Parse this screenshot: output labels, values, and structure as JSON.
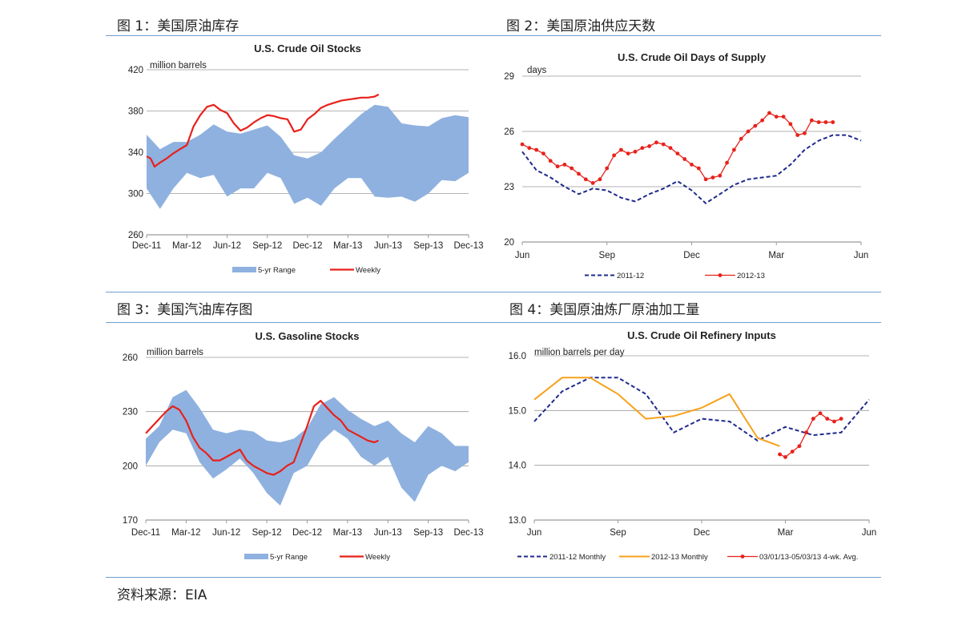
{
  "figures": [
    {
      "label": "图 1：美国原油库存"
    },
    {
      "label": "图 2：美国原油供应天数"
    },
    {
      "label": "图 3：美国汽油库存图"
    },
    {
      "label": "图 4：美国原油炼厂原油加工量"
    }
  ],
  "source": "资料来源：EIA",
  "colors": {
    "rule": "#6f9fcf",
    "band": "#8fb1df",
    "red": "#e8211b",
    "navy": "#1f2a8c",
    "orange": "#f7a21b",
    "grid": "#9a9a9a"
  },
  "chart_data": [
    {
      "type": "area",
      "title": "U.S. Crude Oil Stocks",
      "unit": "million barrels",
      "ylim": [
        260,
        420
      ],
      "yticks": [
        "420",
        "380",
        "340",
        "300",
        "260"
      ],
      "xticks": [
        "Dec-11",
        "Mar-12",
        "Jun-12",
        "Sep-12",
        "Dec-12",
        "Mar-13",
        "Jun-13",
        "Sep-13",
        "Dec-13"
      ],
      "x_range": [
        0,
        24
      ],
      "series": [
        {
          "name": "5-yr Range",
          "kind": "band",
          "x": [
            0,
            1,
            2,
            3,
            4,
            5,
            6,
            7,
            8,
            9,
            10,
            11,
            12,
            13,
            14,
            15,
            16,
            17,
            18,
            19,
            20,
            21,
            22,
            23,
            24
          ],
          "low": [
            305,
            285,
            305,
            320,
            315,
            318,
            297,
            305,
            305,
            320,
            315,
            290,
            296,
            288,
            305,
            315,
            315,
            297,
            296,
            297,
            292,
            300,
            313,
            312,
            320
          ],
          "high": [
            357,
            343,
            350,
            350,
            357,
            367,
            360,
            358,
            362,
            366,
            355,
            337,
            334,
            340,
            353,
            365,
            377,
            386,
            384,
            368,
            366,
            365,
            373,
            376,
            374
          ]
        },
        {
          "name": "Weekly",
          "kind": "line",
          "x": [
            0,
            0.3,
            0.6,
            1,
            1.5,
            2,
            2.5,
            3,
            3.5,
            4,
            4.5,
            5,
            5.5,
            6,
            6.5,
            7,
            7.5,
            8,
            8.5,
            9,
            9.5,
            10,
            10.5,
            11,
            11.5,
            12,
            12.5,
            13,
            13.5,
            14,
            14.5,
            15,
            15.5,
            16,
            16.5,
            17,
            17.3
          ],
          "y": [
            336,
            334,
            326,
            330,
            334,
            339,
            343,
            347,
            365,
            376,
            384,
            386,
            381,
            378,
            368,
            361,
            364,
            369,
            373,
            376,
            375,
            373,
            372,
            360,
            362,
            372,
            377,
            383,
            386,
            388,
            390,
            391,
            392,
            393,
            393,
            394,
            396
          ]
        }
      ]
    },
    {
      "type": "line",
      "title": "U.S. Crude Oil Days  of Supply",
      "unit": "days",
      "ylim": [
        20,
        29
      ],
      "yticks": [
        "29",
        "26",
        "23",
        "20"
      ],
      "xticks": [
        "Jun",
        "Sep",
        "Dec",
        "Mar",
        "Jun"
      ],
      "x_range": [
        0,
        12
      ],
      "series": [
        {
          "name": "2011-12",
          "kind": "dash",
          "x": [
            0,
            0.5,
            1,
            1.5,
            2,
            2.5,
            3,
            3.5,
            4,
            4.5,
            5,
            5.5,
            6,
            6.5,
            7,
            7.5,
            8,
            8.5,
            9,
            9.5,
            10,
            10.5,
            11,
            11.5,
            12
          ],
          "y": [
            24.9,
            23.9,
            23.5,
            23.0,
            22.6,
            22.9,
            22.8,
            22.4,
            22.2,
            22.6,
            22.9,
            23.3,
            22.8,
            22.1,
            22.6,
            23.1,
            23.4,
            23.5,
            23.6,
            24.2,
            25.0,
            25.5,
            25.8,
            25.8,
            25.5
          ]
        },
        {
          "name": "2012-13",
          "kind": "markers",
          "x": [
            0,
            0.25,
            0.5,
            0.75,
            1,
            1.25,
            1.5,
            1.75,
            2,
            2.25,
            2.5,
            2.75,
            3,
            3.25,
            3.5,
            3.75,
            4,
            4.25,
            4.5,
            4.75,
            5,
            5.25,
            5.5,
            5.75,
            6,
            6.25,
            6.5,
            6.75,
            7,
            7.25,
            7.5,
            7.75,
            8,
            8.25,
            8.5,
            8.75,
            9,
            9.25,
            9.5,
            9.75,
            10,
            10.25,
            10.5,
            10.75,
            11
          ],
          "y": [
            25.3,
            25.1,
            25.0,
            24.8,
            24.4,
            24.1,
            24.2,
            24.0,
            23.7,
            23.4,
            23.2,
            23.4,
            24.0,
            24.7,
            25.0,
            24.8,
            24.9,
            25.1,
            25.2,
            25.4,
            25.3,
            25.1,
            24.8,
            24.5,
            24.2,
            24.0,
            23.4,
            23.5,
            23.6,
            24.3,
            25.0,
            25.6,
            26.0,
            26.3,
            26.6,
            27.0,
            26.8,
            26.8,
            26.4,
            25.8,
            25.9,
            26.6,
            26.5,
            26.5,
            26.5
          ]
        }
      ]
    },
    {
      "type": "area",
      "title": "U.S. Gasoline Stocks",
      "unit": "million barrels",
      "ylim": [
        170,
        260
      ],
      "yticks": [
        "260",
        "230",
        "200",
        "170"
      ],
      "xticks": [
        "Dec-11",
        "Mar-12",
        "Jun-12",
        "Sep-12",
        "Dec-12",
        "Mar-13",
        "Jun-13",
        "Sep-13",
        "Dec-13"
      ],
      "x_range": [
        0,
        24
      ],
      "series": [
        {
          "name": "5-yr Range",
          "kind": "band",
          "x": [
            0,
            1,
            2,
            3,
            4,
            5,
            6,
            7,
            8,
            9,
            10,
            11,
            12,
            13,
            14,
            15,
            16,
            17,
            18,
            19,
            20,
            21,
            22,
            23,
            24
          ],
          "low": [
            200,
            213,
            220,
            218,
            202,
            193,
            198,
            204,
            196,
            185,
            178,
            196,
            200,
            213,
            220,
            215,
            205,
            200,
            205,
            188,
            180,
            195,
            200,
            197,
            202
          ],
          "high": [
            215,
            222,
            238,
            242,
            232,
            220,
            218,
            220,
            219,
            214,
            213,
            215,
            221,
            234,
            238,
            231,
            226,
            222,
            225,
            218,
            213,
            222,
            218,
            211,
            211
          ]
        },
        {
          "name": "Weekly",
          "kind": "line",
          "x": [
            0,
            0.5,
            1,
            1.5,
            2,
            2.5,
            3,
            3.5,
            4,
            4.5,
            5,
            5.5,
            6,
            6.5,
            7,
            7.5,
            8,
            8.5,
            9,
            9.5,
            10,
            10.5,
            11,
            11.5,
            12,
            12.5,
            13,
            13.5,
            14,
            14.5,
            15,
            15.5,
            16,
            16.5,
            17,
            17.3
          ],
          "y": [
            218,
            222,
            226,
            230,
            233,
            231,
            225,
            216,
            210,
            207,
            203,
            203,
            205,
            207,
            209,
            203,
            200,
            198,
            196,
            195,
            197,
            200,
            202,
            212,
            222,
            233,
            236,
            232,
            228,
            225,
            220,
            218,
            216,
            214,
            213,
            214
          ]
        }
      ]
    },
    {
      "type": "line",
      "title": "U.S. Crude Oil Refinery  Inputs",
      "unit": "million barrels per day",
      "ylim": [
        13,
        16
      ],
      "yticks": [
        "16.0",
        "15.0",
        "14.0",
        "13.0"
      ],
      "xticks": [
        "Jun",
        "Sep",
        "Dec",
        "Mar",
        "Jun"
      ],
      "x_range": [
        0,
        12
      ],
      "series": [
        {
          "name": "2011-12 Monthly",
          "kind": "dash",
          "x": [
            0,
            1,
            2,
            3,
            4,
            5,
            6,
            7,
            8,
            9,
            10,
            11,
            12
          ],
          "y": [
            14.8,
            15.35,
            15.6,
            15.6,
            15.3,
            14.6,
            14.85,
            14.8,
            14.45,
            14.7,
            14.55,
            14.6,
            15.2
          ]
        },
        {
          "name": "2012-13 Monthly",
          "kind": "solid",
          "x": [
            0,
            1,
            2,
            3,
            4,
            5,
            6,
            7,
            7.5,
            8,
            8.8
          ],
          "y": [
            15.2,
            15.6,
            15.6,
            15.3,
            14.85,
            14.9,
            15.05,
            15.3,
            14.9,
            14.5,
            14.35
          ]
        },
        {
          "name": "03/01/13-05/03/13  4-wk. Avg.",
          "kind": "markers",
          "x": [
            8.8,
            9.0,
            9.25,
            9.5,
            9.75,
            10.0,
            10.25,
            10.5,
            10.75,
            11.0
          ],
          "y": [
            14.2,
            14.15,
            14.25,
            14.35,
            14.6,
            14.85,
            14.95,
            14.85,
            14.8,
            14.85
          ]
        }
      ]
    }
  ]
}
